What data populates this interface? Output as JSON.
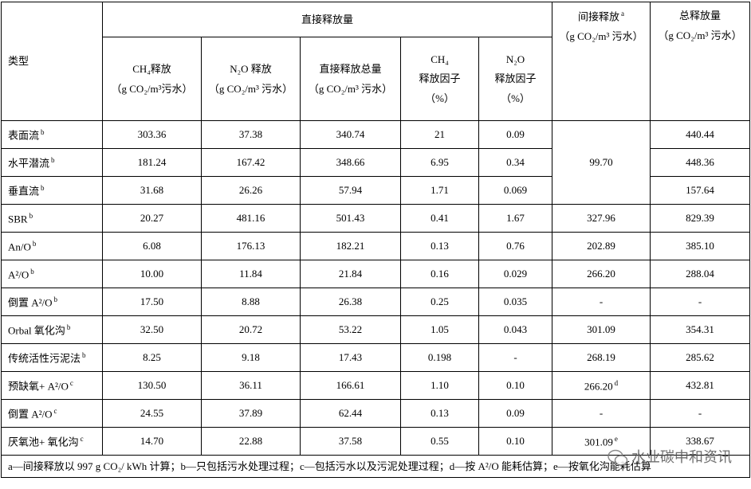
{
  "header": {
    "type_col": "类型",
    "direct_group": "直接释放量",
    "direct_cols": [
      [
        "CH₄释放",
        "（g CO₂/m³污水）"
      ],
      [
        "N₂O 释放",
        "（g CO₂/m³ 污水）"
      ],
      [
        "直接释放总量",
        "（g CO₂/m³ 污水）"
      ],
      [
        "CH₄",
        "释放因子",
        "（%）"
      ],
      [
        "N₂O",
        "释放因子",
        "（%）"
      ]
    ],
    "indirect": {
      "label": "间接释放",
      "note": "a",
      "unit": "（g CO₂/m³ 污水）"
    },
    "total": [
      "总释放量",
      "（g CO₂/m³ 污水）"
    ]
  },
  "table": {
    "rows": [
      {
        "type": "表面流",
        "note": "b",
        "cells": [
          "303.36",
          "37.38",
          "340.74",
          "21",
          "0.09"
        ],
        "indirect": "99.70",
        "indirect_span": 3,
        "total": "440.44"
      },
      {
        "type": "水平潜流",
        "note": "b",
        "cells": [
          "181.24",
          "167.42",
          "348.66",
          "6.95",
          "0.34"
        ],
        "total": "448.36"
      },
      {
        "type": "垂直流",
        "note": "b",
        "cells": [
          "31.68",
          "26.26",
          "57.94",
          "1.71",
          "0.069"
        ],
        "total": "157.64"
      },
      {
        "type": "SBR",
        "note": "b",
        "cells": [
          "20.27",
          "481.16",
          "501.43",
          "0.41",
          "1.67"
        ],
        "indirect": "327.96",
        "total": "829.39"
      },
      {
        "type": "An/O",
        "note": "b",
        "cells": [
          "6.08",
          "176.13",
          "182.21",
          "0.13",
          "0.76"
        ],
        "indirect": "202.89",
        "total": "385.10"
      },
      {
        "type": "A²/O",
        "note": "b",
        "cells": [
          "10.00",
          "11.84",
          "21.84",
          "0.16",
          "0.029"
        ],
        "indirect": "266.20",
        "total": "288.04"
      },
      {
        "type": "倒置 A²/O",
        "note": "b",
        "cells": [
          "17.50",
          "8.88",
          "26.38",
          "0.25",
          "0.035"
        ],
        "indirect": "-",
        "total": "-"
      },
      {
        "type": "Orbal 氧化沟",
        "note": "b",
        "cells": [
          "32.50",
          "20.72",
          "53.22",
          "1.05",
          "0.043"
        ],
        "indirect": "301.09",
        "total": "354.31"
      },
      {
        "type": "传统活性污泥法",
        "note": "b",
        "cells": [
          "8.25",
          "9.18",
          "17.43",
          "0.198",
          "-"
        ],
        "indirect": "268.19",
        "total": "285.62"
      },
      {
        "type": "预缺氧+ A²/O",
        "note": "c",
        "cells": [
          "130.50",
          "36.11",
          "166.61",
          "1.10",
          "0.10"
        ],
        "indirect": "266.20",
        "indirect_note": "d",
        "total": "432.81"
      },
      {
        "type": "倒置 A²/O",
        "note": "c",
        "cells": [
          "24.55",
          "37.89",
          "62.44",
          "0.13",
          "0.09"
        ],
        "indirect": "-",
        "total": "-"
      },
      {
        "type": "厌氧池+ 氧化沟",
        "note": "c",
        "cells": [
          "14.70",
          "22.88",
          "37.58",
          "0.55",
          "0.10"
        ],
        "indirect": "301.09",
        "indirect_note": "e",
        "total": "338.67"
      }
    ]
  },
  "footer": "a—间接释放以 997 g CO₂/ kWh 计算；b—只包括污水处理过程；c—包括污水以及污泥处理过程；d—按 A²/O 能耗估算；e—按氧化沟能耗估算",
  "watermark": "水业碳中和资讯"
}
